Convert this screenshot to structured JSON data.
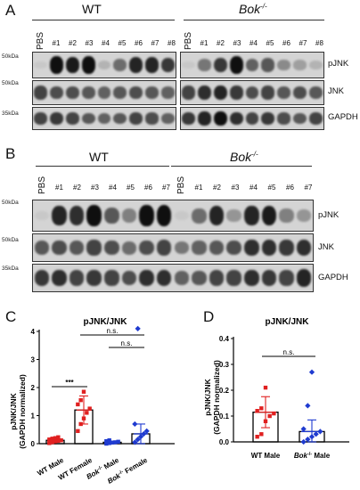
{
  "panel_a": {
    "letter": "A",
    "group_wt": "WT",
    "group_bok": "Bok",
    "group_bok_sup": "-/-",
    "lanes_wt": [
      "PBS",
      "#1",
      "#2",
      "#3",
      "#4",
      "#5",
      "#6",
      "#7",
      "#8"
    ],
    "lanes_bok": [
      "PBS",
      "#1",
      "#2",
      "#3",
      "#4",
      "#5",
      "#6",
      "#7",
      "#8"
    ],
    "mw_pjnk": "50kDa",
    "mw_jnk": "50kDa",
    "mw_gapdh": "35kDa",
    "ab_pjnk": "pJNK",
    "ab_jnk": "JNK",
    "ab_gapdh": "GAPDH"
  },
  "panel_b": {
    "letter": "B",
    "group_wt": "WT",
    "group_bok": "Bok",
    "group_bok_sup": "-/-",
    "lanes_wt": [
      "PBS",
      "#1",
      "#2",
      "#3",
      "#4",
      "#5",
      "#6",
      "#7"
    ],
    "lanes_bok": [
      "PBS",
      "#1",
      "#2",
      "#3",
      "#4",
      "#5",
      "#6",
      "#7"
    ],
    "mw_pjnk": "50kDa",
    "mw_jnk": "50kDa",
    "mw_gapdh": "35kDa",
    "ab_pjnk": "pJNK",
    "ab_jnk": "JNK",
    "ab_gapdh": "GAPDH"
  },
  "chart_data": [
    {
      "panel": "C",
      "type": "scatter",
      "title": "pJNK/JNK",
      "ylabel": "pJNK/JNK (GAPDH normalized)",
      "ylim": [
        0,
        4
      ],
      "yticks": [
        0,
        1,
        2,
        3,
        4
      ],
      "categories": [
        "WT Male",
        "WT Female",
        "Bok-/- Male",
        "Bok-/- Female"
      ],
      "bar_means": [
        0.12,
        1.2,
        0.05,
        0.35
      ],
      "error_sd": [
        0.06,
        0.5,
        0.04,
        0.35
      ],
      "colors": [
        "#e02020",
        "#e02020",
        "#1f3bd0",
        "#1f3bd0"
      ],
      "points": [
        [
          0.02,
          0.05,
          0.08,
          0.1,
          0.12,
          0.15,
          0.18,
          0.2,
          0.23
        ],
        [
          0.45,
          0.7,
          0.9,
          1.1,
          1.25,
          1.4,
          1.55,
          1.85
        ],
        [
          0.0,
          0.02,
          0.04,
          0.05,
          0.07,
          0.09,
          0.12
        ],
        [
          0.05,
          0.15,
          0.25,
          0.35,
          0.45,
          0.7,
          4.1
        ]
      ],
      "significance": [
        {
          "from": 0,
          "to": 1,
          "label": "***"
        },
        {
          "from": 1,
          "to": 3,
          "label": "n.s."
        },
        {
          "from": 2,
          "to": 3,
          "label": "n.s."
        }
      ]
    },
    {
      "panel": "D",
      "type": "scatter",
      "title": "pJNK/JNK",
      "ylabel": "pJNK/JNK (GAPDH normalized)",
      "ylim": [
        0,
        0.4
      ],
      "yticks": [
        0.0,
        0.1,
        0.2,
        0.3,
        0.4
      ],
      "categories": [
        "WT Male",
        "Bok-/- Male"
      ],
      "bar_means": [
        0.115,
        0.04
      ],
      "error_sd": [
        0.06,
        0.045
      ],
      "colors": [
        "#e02020",
        "#1f3bd0"
      ],
      "points": [
        [
          0.02,
          0.03,
          0.08,
          0.1,
          0.11,
          0.12,
          0.13,
          0.21
        ],
        [
          0.0,
          0.01,
          0.02,
          0.03,
          0.04,
          0.05,
          0.14,
          0.27
        ]
      ],
      "significance": [
        {
          "from": 0,
          "to": 1,
          "label": "n.s."
        }
      ]
    }
  ],
  "chart_c": {
    "letter": "C",
    "title": "pJNK/JNK",
    "ylabel_1": "pJNK/JNK",
    "ylabel_2": "(GAPDH normalized)",
    "cat_wt_male": "WT Male",
    "cat_wt_female": "WT Female",
    "cat_bok": "Bok",
    "cat_bok_sup": "-/-",
    "cat_male": "Male",
    "cat_female": "Female",
    "sig_1": "***",
    "sig_2": "n.s.",
    "sig_3": "n.s."
  },
  "chart_d": {
    "letter": "D",
    "title": "pJNK/JNK",
    "ylabel_1": "pJNK/JNK",
    "ylabel_2": "(GAPDH normalized)",
    "cat_wt_male": "WT Male",
    "cat_bok": "Bok",
    "cat_bok_sup": "-/-",
    "cat_male": "Male",
    "sig_1": "n.s."
  }
}
